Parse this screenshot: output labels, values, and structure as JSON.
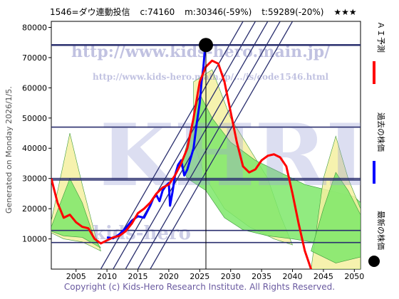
{
  "header": {
    "code_name": "1546=ダウ連動投信",
    "current": "c:74160",
    "m_value": "m:30346(-59%)",
    "t_value": "t:59289(-20%)",
    "stars": "★★★"
  },
  "watermarks": {
    "url_main": "http://www.kids-hero.main.jp/",
    "url_code": "http://www.kids-hero.main.jp/.../is/code1546.html",
    "big": "KHRI",
    "lower": "kids-hero"
  },
  "side_generated": "Generated on Monday 2026/1/5.",
  "footer": "Copyright (c) Kids-Hero Research Institute. All Rights Reserved.",
  "legend": {
    "ai_forecast": "ＡＩ予測",
    "past_price": "過去の株価",
    "latest_price": "最新の株価"
  },
  "colors": {
    "ai_forecast": "#ff0000",
    "past_price": "#0000ff",
    "latest_dot": "#000000",
    "band_green": "#7ee86a",
    "band_yellow": "#f4f0a0",
    "trend_lines": "#2a2f6e",
    "hlines": "#2a2f6e"
  },
  "chart_data": {
    "type": "line",
    "xlim": [
      2001,
      2051
    ],
    "ylim": [
      0,
      82000
    ],
    "x_ticks": [
      2005,
      2010,
      2015,
      2020,
      2025,
      2030,
      2035,
      2040,
      2045,
      2050
    ],
    "y_ticks": [
      10000,
      20000,
      30000,
      40000,
      50000,
      60000,
      70000,
      80000
    ],
    "horizontal_levels": [
      74160,
      47000,
      30000,
      29500,
      12800,
      8800
    ],
    "current_marker": {
      "x": 2026.0,
      "y": 74160
    },
    "series": [
      {
        "name": "過去の株価",
        "x": [
          2010,
          2011,
          2012,
          2013,
          2014,
          2015,
          2016,
          2016.5,
          2017,
          2017.5,
          2018,
          2018.5,
          2019,
          2019.5,
          2020.0,
          2020.2,
          2020.6,
          2021,
          2021.5,
          2022,
          2022.5,
          2023,
          2023.5,
          2024,
          2024.5,
          2025,
          2025.3,
          2025.6,
          2025.9
        ],
        "y": [
          10500,
          10200,
          11500,
          13500,
          16000,
          17500,
          17000,
          19000,
          21000,
          23500,
          24500,
          22500,
          26000,
          27500,
          28500,
          21000,
          25500,
          31000,
          34500,
          36000,
          31000,
          33000,
          36500,
          40000,
          48000,
          55000,
          62000,
          67000,
          74160
        ]
      },
      {
        "name": "ＡＩ予測",
        "x": [
          2001,
          2002,
          2003,
          2004,
          2005,
          2006,
          2007,
          2008,
          2009,
          2010,
          2011,
          2012,
          2013,
          2014,
          2015,
          2016,
          2017,
          2018,
          2019,
          2020,
          2021,
          2022,
          2023,
          2024,
          2025,
          2026,
          2027,
          2028,
          2029,
          2030,
          2031,
          2032,
          2033,
          2034,
          2035,
          2036,
          2037,
          2038,
          2039,
          2040,
          2041,
          2042,
          2043,
          2044
        ],
        "y": [
          30000,
          22000,
          17000,
          18000,
          15500,
          14000,
          13500,
          10000,
          8500,
          9500,
          10500,
          11000,
          12500,
          15000,
          18500,
          20000,
          22000,
          25000,
          27000,
          28000,
          31000,
          35000,
          40000,
          50000,
          62000,
          67000,
          69000,
          68000,
          62000,
          52000,
          42000,
          34000,
          32000,
          33000,
          36000,
          37500,
          38000,
          37000,
          34000,
          25000,
          15000,
          6000,
          0,
          -6000
        ]
      }
    ]
  }
}
